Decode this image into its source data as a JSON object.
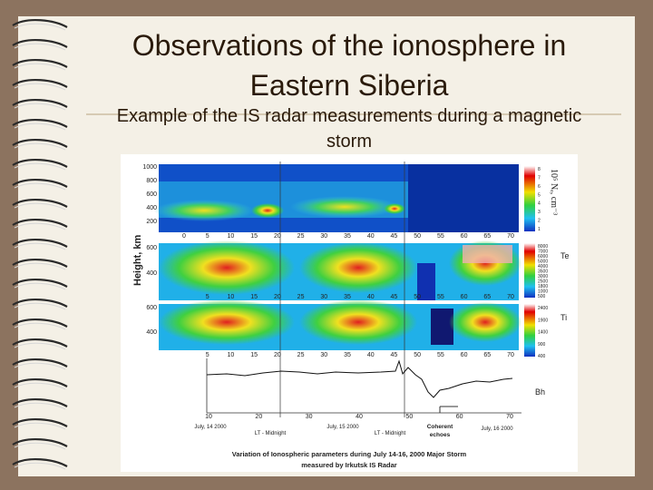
{
  "title": "Observations of the ionosphere in Eastern Siberia",
  "subtitle": "Example of the IS radar measurements during a magnetic storm",
  "figure": {
    "y_axis_label": "Height, km",
    "ne_panel": {
      "yticks": [
        1000,
        800,
        600,
        400,
        200
      ],
      "xticks": [
        0,
        5,
        10,
        15,
        20,
        25,
        30,
        35,
        40,
        45,
        50,
        55,
        60,
        65,
        70
      ],
      "colorbar_label": "10⁵ Nₑ, cm⁻³",
      "colorbar_ticks": [
        8,
        7,
        6,
        5,
        4,
        3,
        2,
        1
      ]
    },
    "te_panel": {
      "yticks": [
        600,
        400
      ],
      "xticks": [
        5,
        10,
        15,
        20,
        25,
        30,
        35,
        40,
        45,
        50,
        55,
        60,
        65,
        70
      ],
      "colorbar_label": "Te",
      "colorbar_ticks": [
        8000,
        7000,
        6000,
        5000,
        4000,
        3500,
        3000,
        2500,
        1800,
        1000,
        500
      ]
    },
    "ti_panel": {
      "yticks": [
        600,
        400
      ],
      "xticks": [
        5,
        10,
        15,
        20,
        25,
        30,
        35,
        40,
        45,
        50,
        55,
        60,
        65,
        70
      ],
      "colorbar_label": "Ti",
      "colorbar_ticks": [
        2400,
        1900,
        1400,
        900,
        400
      ]
    },
    "bh_panel": {
      "label": "Bh",
      "xticks": [
        10,
        20,
        30,
        40,
        50,
        60,
        70
      ],
      "annotations": [
        "July, 14 2000",
        "LT - Midnight",
        "July, 15 2000",
        "LT - Midnight",
        "Coherent echoes",
        "July, 16 2000"
      ]
    },
    "caption": [
      "Variation of Ionospheric parameters during July 14-16, 2000 Major Storm",
      "measured by Irkutsk IS Radar"
    ]
  }
}
